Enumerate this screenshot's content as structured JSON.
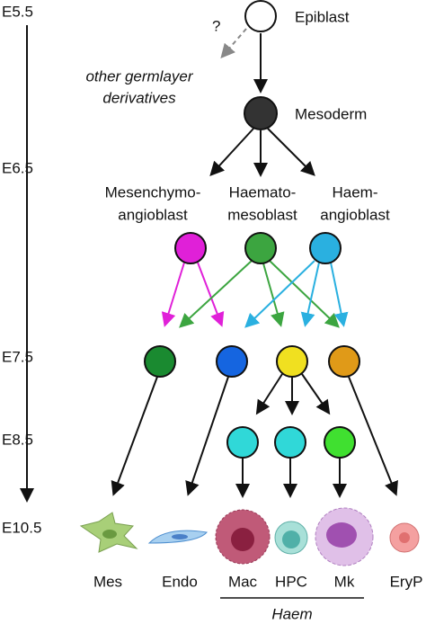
{
  "timeline": [
    "E5.5",
    "E6.5",
    "E7.5",
    "E8.5",
    "E10.5"
  ],
  "nodes": {
    "epiblast": "Epiblast",
    "question": "?",
    "other": [
      "other germlayer",
      "derivatives"
    ],
    "mesoderm": "Mesoderm",
    "progenitors": [
      [
        "Mesenchymo-",
        "angioblast"
      ],
      [
        "Haemato-",
        "mesoblast"
      ],
      [
        "Haem-",
        "angioblast"
      ]
    ]
  },
  "cells": [
    "Mes",
    "Endo",
    "Mac",
    "HPC",
    "Mk",
    "EryP"
  ],
  "group": "Haem"
}
